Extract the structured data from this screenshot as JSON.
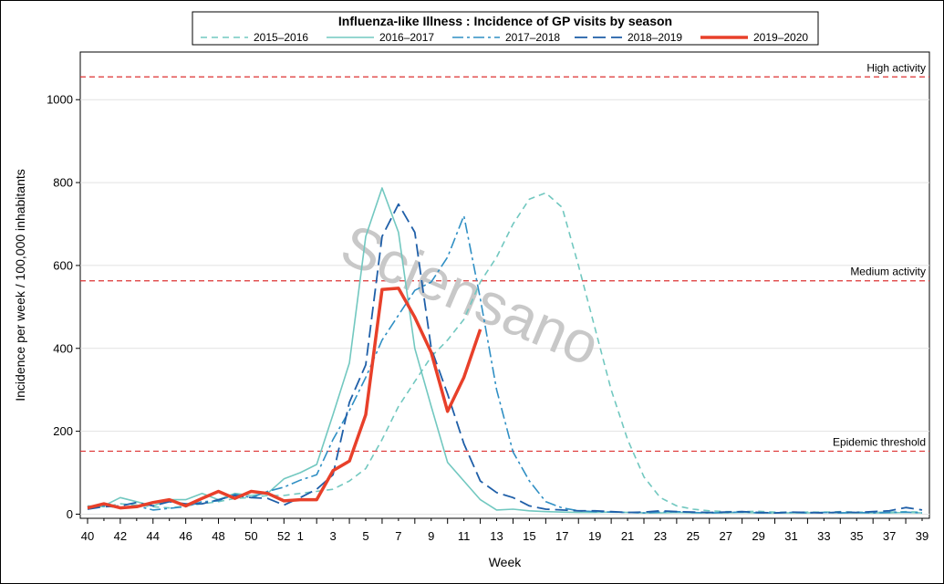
{
  "chart_data": {
    "type": "line",
    "title": "Influenza-like Illness : Incidence of GP visits by season",
    "xlabel": "Week",
    "ylabel": "Incidence per week / 100,000 inhabitants",
    "watermark": "Sciensano",
    "ylim": [
      -10,
      1115
    ],
    "yticks": [
      0,
      200,
      400,
      600,
      800,
      1000
    ],
    "x_tick_labels": [
      "40",
      "42",
      "44",
      "46",
      "48",
      "50",
      "52",
      "1",
      "3",
      "5",
      "7",
      "9",
      "11",
      "13",
      "15",
      "17",
      "19",
      "21",
      "23",
      "25",
      "27",
      "29",
      "31",
      "33",
      "35",
      "37",
      "39"
    ],
    "weeks": [
      "40",
      "41",
      "42",
      "43",
      "44",
      "45",
      "46",
      "47",
      "48",
      "49",
      "50",
      "51",
      "52",
      "1",
      "2",
      "3",
      "4",
      "5",
      "6",
      "7",
      "8",
      "9",
      "10",
      "11",
      "12",
      "13",
      "14",
      "15",
      "16",
      "17",
      "18",
      "19",
      "20",
      "21",
      "22",
      "23",
      "24",
      "25",
      "26",
      "27",
      "28",
      "29",
      "30",
      "31",
      "32",
      "33",
      "34",
      "35",
      "36",
      "37",
      "38",
      "39"
    ],
    "reference_lines": [
      {
        "label": "High activity",
        "value": 1055,
        "color": "#dd3333"
      },
      {
        "label": "Medium activity",
        "value": 563,
        "color": "#dd3333"
      },
      {
        "label": "Epidemic threshold",
        "value": 152,
        "color": "#dd3333"
      }
    ],
    "series": [
      {
        "name": "2015–2016",
        "color": "#72c8c0",
        "dash": "7,5",
        "width": 1.6,
        "values": [
          20,
          18,
          25,
          22,
          18,
          15,
          20,
          25,
          30,
          38,
          40,
          45,
          45,
          50,
          55,
          60,
          80,
          110,
          180,
          260,
          320,
          380,
          420,
          470,
          560,
          620,
          700,
          760,
          775,
          740,
          600,
          450,
          300,
          180,
          90,
          40,
          20,
          12,
          8,
          6,
          6,
          7,
          5,
          4,
          5,
          5,
          6,
          5,
          4,
          5,
          6,
          5
        ]
      },
      {
        "name": "2016–2017",
        "color": "#72c8c0",
        "dash": "",
        "width": 1.6,
        "values": [
          15,
          20,
          40,
          30,
          20,
          35,
          35,
          50,
          35,
          50,
          45,
          50,
          85,
          100,
          120,
          240,
          365,
          670,
          787,
          680,
          400,
          260,
          125,
          80,
          35,
          10,
          12,
          8,
          6,
          5,
          4,
          4,
          5,
          4,
          3,
          3,
          4,
          3,
          3,
          3,
          4,
          3,
          3,
          3,
          3,
          4,
          3,
          3,
          3,
          3,
          4,
          3
        ]
      },
      {
        "name": "2017–2018",
        "color": "#2f8fc4",
        "dash": "12,4,3,4",
        "width": 1.6,
        "values": [
          18,
          20,
          15,
          20,
          10,
          14,
          18,
          30,
          32,
          48,
          40,
          55,
          65,
          82,
          95,
          180,
          250,
          330,
          420,
          480,
          540,
          560,
          620,
          720,
          520,
          300,
          150,
          80,
          30,
          15,
          8,
          6,
          5,
          4,
          3,
          5,
          6,
          4,
          3,
          4,
          5,
          3,
          3,
          4,
          3,
          4,
          3,
          4,
          3,
          4,
          5,
          3
        ]
      },
      {
        "name": "2018–2019",
        "color": "#1f5fa8",
        "dash": "14,6",
        "width": 1.8,
        "values": [
          12,
          18,
          20,
          28,
          20,
          30,
          25,
          25,
          35,
          45,
          40,
          38,
          22,
          40,
          60,
          95,
          270,
          360,
          670,
          748,
          680,
          400,
          290,
          170,
          80,
          52,
          40,
          20,
          12,
          10,
          8,
          8,
          6,
          4,
          5,
          8,
          6,
          5,
          4,
          5,
          6,
          4,
          3,
          5,
          4,
          3,
          5,
          4,
          6,
          8,
          16,
          10
        ]
      },
      {
        "name": "2019–2020",
        "color": "#e8402a",
        "dash": "",
        "width": 3.5,
        "values": [
          15,
          25,
          15,
          18,
          28,
          35,
          20,
          38,
          55,
          38,
          55,
          50,
          32,
          35,
          35,
          105,
          128,
          240,
          542,
          545,
          475,
          390,
          248,
          330,
          446
        ]
      }
    ]
  }
}
